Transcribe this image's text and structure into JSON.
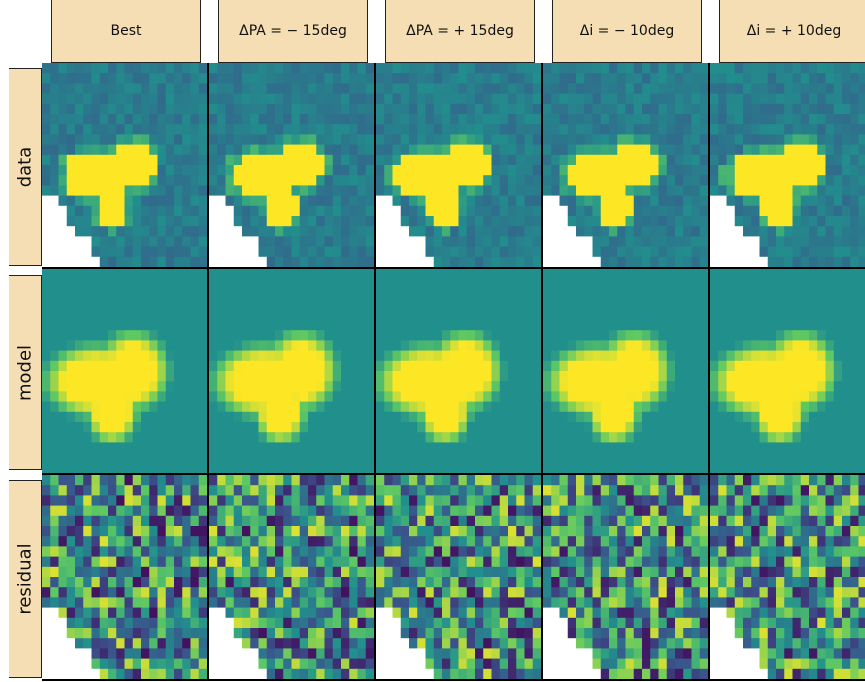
{
  "columns": [
    {
      "label": "Best"
    },
    {
      "label": "ΔPA = − 15deg"
    },
    {
      "label": "ΔPA = + 15deg"
    },
    {
      "label": "Δi = − 10deg"
    },
    {
      "label": "Δi = + 10deg"
    }
  ],
  "rows": [
    {
      "label": "data"
    },
    {
      "label": "model"
    },
    {
      "label": "residual"
    }
  ],
  "colormap": [
    "#440154",
    "#3b528b",
    "#21908d",
    "#5dc863",
    "#fde725"
  ],
  "masked_color": "#ffffff"
}
